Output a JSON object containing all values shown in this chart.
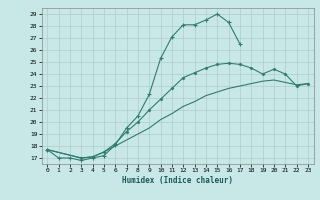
{
  "xlabel": "Humidex (Indice chaleur)",
  "ylabel": "",
  "background_color": "#c8e8e8",
  "grid_color": "#b0cccc",
  "line_color": "#2e7d6e",
  "xlim": [
    -0.5,
    23.5
  ],
  "ylim": [
    16.5,
    29.5
  ],
  "xticks": [
    0,
    1,
    2,
    3,
    4,
    5,
    6,
    7,
    8,
    9,
    10,
    11,
    12,
    13,
    14,
    15,
    16,
    17,
    18,
    19,
    20,
    21,
    22,
    23
  ],
  "yticks": [
    17,
    18,
    19,
    20,
    21,
    22,
    23,
    24,
    25,
    26,
    27,
    28,
    29
  ],
  "curve1_x": [
    0,
    1,
    2,
    3,
    4,
    5,
    6,
    7,
    8,
    9,
    10,
    11,
    12,
    13,
    14,
    15,
    16,
    17
  ],
  "curve1_y": [
    17.7,
    17.0,
    17.0,
    16.8,
    17.0,
    17.2,
    18.1,
    19.5,
    20.5,
    22.3,
    25.3,
    27.1,
    28.1,
    28.1,
    28.5,
    29.0,
    28.3,
    26.5
  ],
  "curve2_x": [
    0,
    3,
    4,
    5,
    6,
    7,
    8,
    9,
    10,
    11,
    12,
    13,
    14,
    15,
    16,
    17,
    18,
    19,
    20,
    21,
    22,
    23
  ],
  "curve2_y": [
    17.7,
    17.0,
    17.1,
    17.5,
    18.2,
    19.2,
    20.0,
    21.0,
    21.9,
    22.8,
    23.7,
    24.1,
    24.5,
    24.8,
    24.9,
    24.8,
    24.5,
    24.0,
    24.4,
    24.0,
    23.0,
    23.2
  ],
  "curve3_x": [
    0,
    3,
    4,
    5,
    6,
    7,
    8,
    9,
    10,
    11,
    12,
    13,
    14,
    15,
    16,
    17,
    18,
    19,
    20,
    21,
    22,
    23
  ],
  "curve3_y": [
    17.7,
    17.0,
    17.1,
    17.5,
    18.0,
    18.5,
    19.0,
    19.5,
    20.2,
    20.7,
    21.3,
    21.7,
    22.2,
    22.5,
    22.8,
    23.0,
    23.2,
    23.4,
    23.5,
    23.3,
    23.1,
    23.2
  ]
}
